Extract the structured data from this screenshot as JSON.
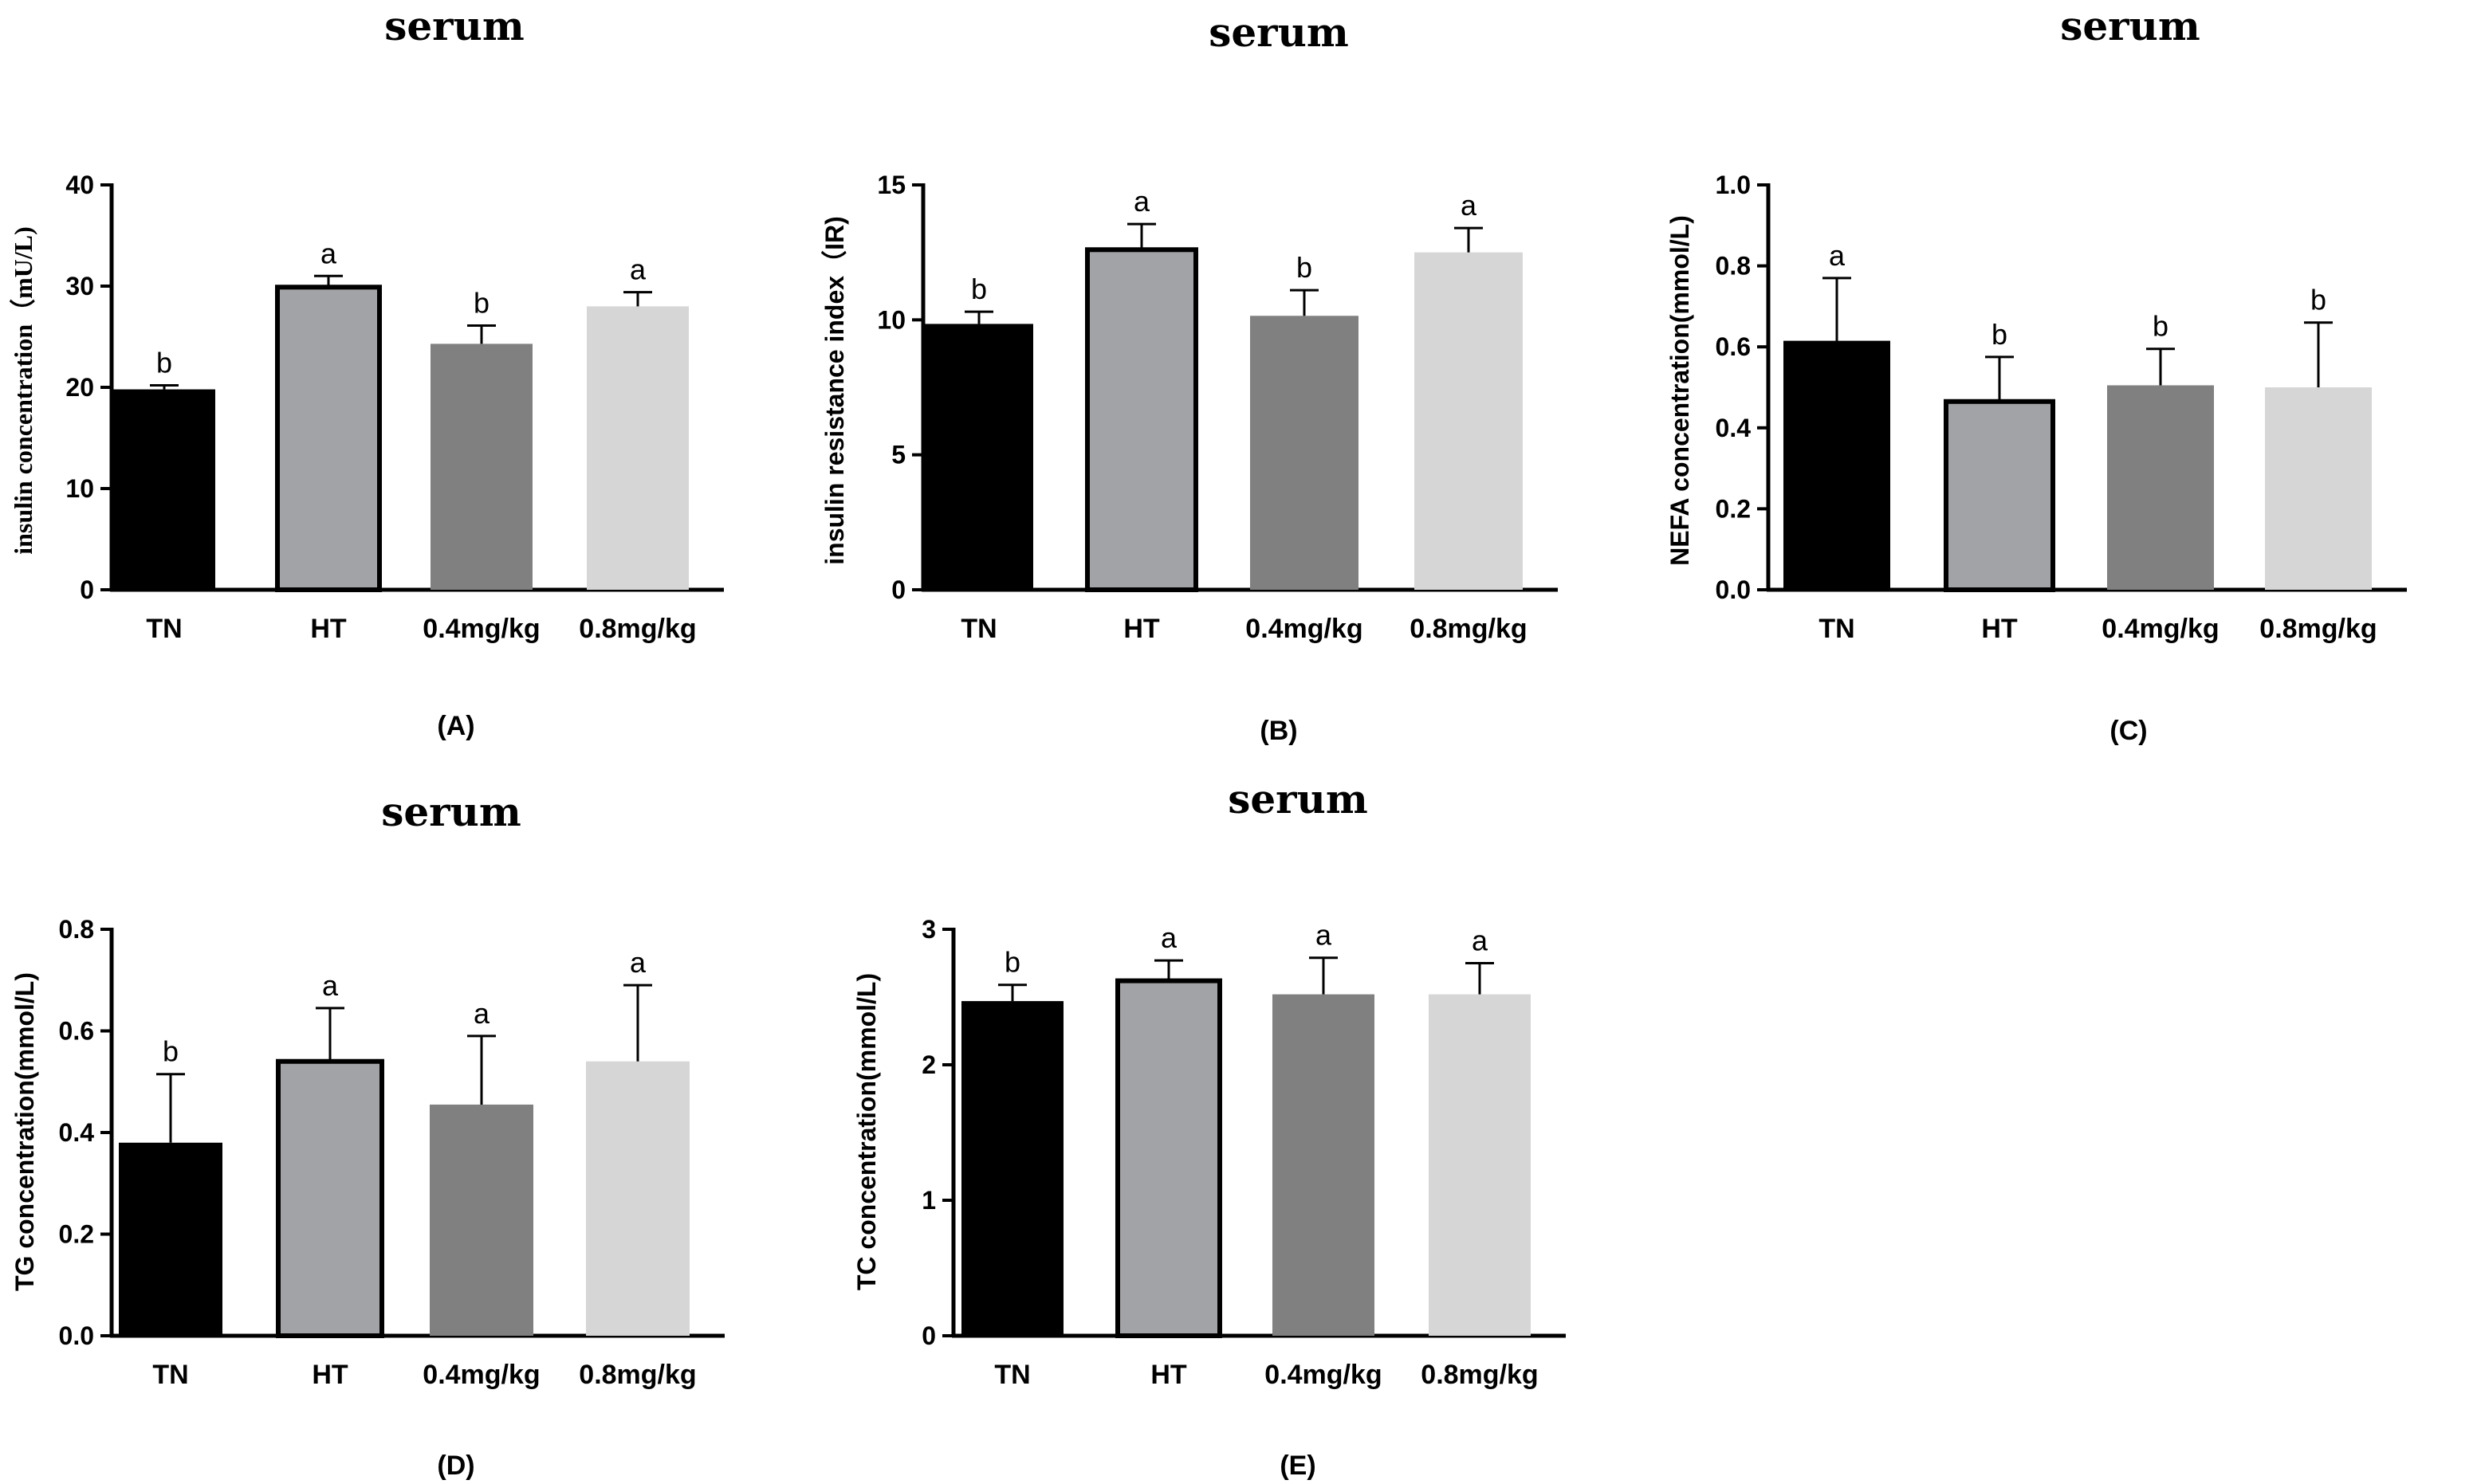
{
  "colors": {
    "TN": "#000000",
    "HT": "#a2a3a6",
    "0.4mg/kg": "#808080",
    "0.8mg/kg": "#d6d6d6"
  },
  "chart_data": [
    {
      "type": "bar",
      "panel": "(A)",
      "title": "serum",
      "ylabel": "insulin concentration（mU/L)",
      "categories": [
        "TN",
        "HT",
        "0.4mg/kg",
        "0.8mg/kg"
      ],
      "values": [
        19.8,
        29.9,
        24.3,
        28.0
      ],
      "errors": [
        0.4,
        1.1,
        1.8,
        1.4
      ],
      "letters": [
        "b",
        "a",
        "b",
        "a"
      ],
      "ylim": [
        0,
        40
      ],
      "yticks": [
        0,
        10,
        20,
        30,
        40
      ],
      "ytick_labels": [
        "0",
        "10",
        "20",
        "30",
        "40"
      ]
    },
    {
      "type": "bar",
      "panel": "(B)",
      "title": "serum",
      "ylabel": "insulin resistance index（IR)",
      "categories": [
        "TN",
        "HT",
        "0.4mg/kg",
        "0.8mg/kg"
      ],
      "values": [
        9.85,
        12.6,
        10.15,
        12.5
      ],
      "errors": [
        0.45,
        0.95,
        0.95,
        0.9
      ],
      "letters": [
        "b",
        "a",
        "b",
        "a"
      ],
      "ylim": [
        0,
        15
      ],
      "yticks": [
        0,
        5,
        10,
        15
      ],
      "ytick_labels": [
        "0",
        "5",
        "10",
        "15"
      ]
    },
    {
      "type": "bar",
      "panel": "(C)",
      "title": "serum",
      "ylabel": "NEFA concentration(mmol/L)",
      "categories": [
        "TN",
        "HT",
        "0.4mg/kg",
        "0.8mg/kg"
      ],
      "values": [
        0.615,
        0.465,
        0.505,
        0.5
      ],
      "errors": [
        0.155,
        0.11,
        0.09,
        0.16
      ],
      "letters": [
        "a",
        "b",
        "b",
        "b"
      ],
      "ylim": [
        0,
        1.0
      ],
      "yticks": [
        0,
        0.2,
        0.4,
        0.6,
        0.8,
        1.0
      ],
      "ytick_labels": [
        "0.0",
        "0.2",
        "0.4",
        "0.6",
        "0.8",
        "1.0"
      ]
    },
    {
      "type": "bar",
      "panel": "(D)",
      "title": "serum",
      "ylabel": "TG concentration(mmol/L)",
      "categories": [
        "TN",
        "HT",
        "0.4mg/kg",
        "0.8mg/kg"
      ],
      "values": [
        0.38,
        0.54,
        0.455,
        0.54
      ],
      "errors": [
        0.135,
        0.105,
        0.135,
        0.15
      ],
      "letters": [
        "b",
        "a",
        "a",
        "a"
      ],
      "ylim": [
        0,
        0.8
      ],
      "yticks": [
        0,
        0.2,
        0.4,
        0.6,
        0.8
      ],
      "ytick_labels": [
        "0.0",
        "0.2",
        "0.4",
        "0.6",
        "0.8"
      ]
    },
    {
      "type": "bar",
      "panel": "(E)",
      "title": "serum",
      "ylabel": "TC concentration(mmol/L)",
      "categories": [
        "TN",
        "HT",
        "0.4mg/kg",
        "0.8mg/kg"
      ],
      "values": [
        2.47,
        2.62,
        2.52,
        2.52
      ],
      "errors": [
        0.12,
        0.15,
        0.27,
        0.23
      ],
      "letters": [
        "b",
        "a",
        "a",
        "a"
      ],
      "ylim": [
        0,
        3
      ],
      "yticks": [
        0,
        1,
        2,
        3
      ],
      "ytick_labels": [
        "0",
        "1",
        "2",
        "3"
      ]
    }
  ]
}
